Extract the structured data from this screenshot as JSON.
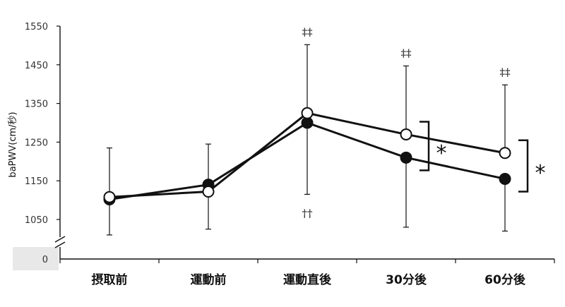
{
  "chart_data": {
    "type": "line",
    "ylabel": "baPWV(cm/秒)",
    "categories": [
      "摂取前",
      "運動前",
      "運動直後",
      "30分後",
      "60分後"
    ],
    "yticks": [
      1050,
      1150,
      1250,
      1350,
      1450,
      1550
    ],
    "ylim": [
      950,
      1550
    ],
    "axis_break": true,
    "zero_label": "0",
    "series": [
      {
        "marker": "filled-circle",
        "values": [
          1102,
          1140,
          1300,
          1210,
          1155
        ],
        "error_low": [
          1102,
          1140,
          1115,
          1030,
          1020
        ],
        "error_high": [
          1102,
          1140,
          1300,
          1210,
          1155
        ]
      },
      {
        "marker": "open-circle",
        "values": [
          1108,
          1122,
          1325,
          1270,
          1222
        ],
        "error_low": [
          1010,
          1025,
          1325,
          1270,
          1222
        ],
        "error_high": [
          1235,
          1245,
          1502,
          1447,
          1398
        ]
      }
    ],
    "annotations": [
      {
        "text": "‡‡",
        "category": 2,
        "position": "above"
      },
      {
        "text": "‡‡",
        "category": 3,
        "position": "above"
      },
      {
        "text": "‡‡",
        "category": 4,
        "position": "above"
      },
      {
        "text": "††",
        "category": 2,
        "position": "below"
      }
    ],
    "brackets": [
      {
        "category": 3,
        "label": "*"
      },
      {
        "category": 4,
        "label": "*"
      }
    ],
    "grid": false,
    "legend": "none"
  }
}
